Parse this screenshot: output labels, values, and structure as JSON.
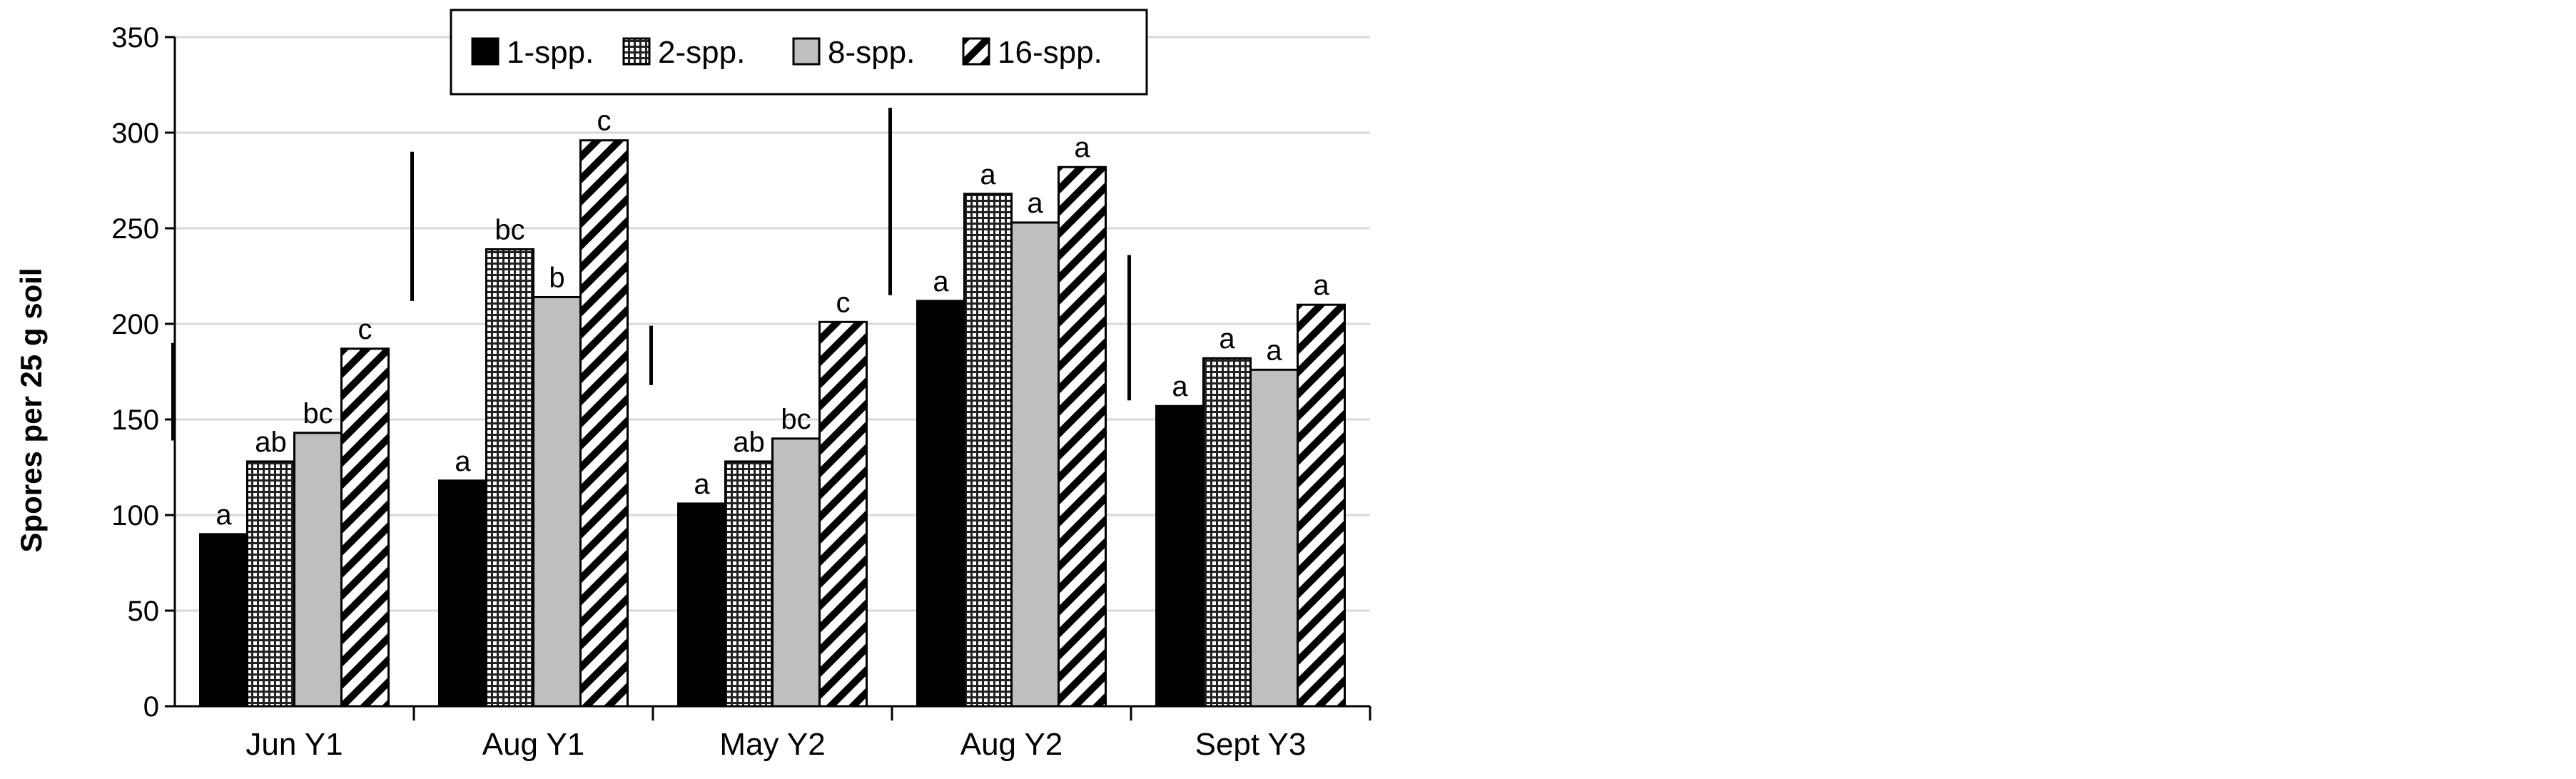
{
  "chart_data": {
    "type": "bar",
    "title": "",
    "xlabel": "",
    "ylabel": "Spores per 25 g soil",
    "ylim": [
      0,
      350
    ],
    "yticks": [
      0,
      50,
      100,
      150,
      200,
      250,
      300,
      350
    ],
    "grid": true,
    "legend_position": "top-center",
    "categories": [
      "Jun Y1",
      "Aug Y1",
      "May Y2",
      "Aug Y2",
      "Sept Y3"
    ],
    "series": [
      {
        "name": "1-spp.",
        "pattern": "solid-black",
        "values": [
          90,
          118,
          106,
          212,
          157
        ],
        "letters": [
          "a",
          "a",
          "a",
          "a",
          "a"
        ]
      },
      {
        "name": "2-spp.",
        "pattern": "crosshatch",
        "values": [
          128,
          239,
          128,
          268,
          182
        ],
        "letters": [
          "ab",
          "bc",
          "ab",
          "a",
          "a"
        ]
      },
      {
        "name": "8-spp.",
        "pattern": "light-gray",
        "values": [
          143,
          214,
          140,
          253,
          176
        ],
        "letters": [
          "bc",
          "b",
          "bc",
          "a",
          "a"
        ]
      },
      {
        "name": "16-spp.",
        "pattern": "diagonal-stripes",
        "values": [
          187,
          296,
          201,
          282,
          210
        ],
        "letters": [
          "c",
          "c",
          "c",
          "a",
          "a"
        ]
      }
    ],
    "error_bars": [
      {
        "from": 139,
        "to": 190
      },
      {
        "from": 212,
        "to": 290
      },
      {
        "from": 168,
        "to": 199
      },
      {
        "from": 215,
        "to": 313
      },
      {
        "from": 160,
        "to": 236
      }
    ],
    "colors": {
      "solid": "#000000",
      "light_gray": "#bfbfbf",
      "grid": "#d9d9d9",
      "axis": "#000000"
    }
  }
}
